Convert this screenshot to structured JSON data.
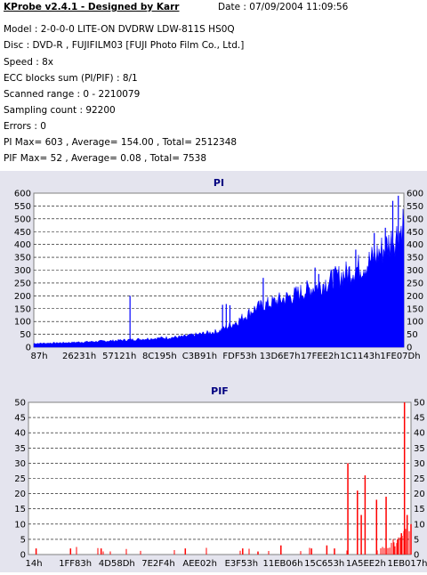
{
  "header": {
    "title": "KProbe v2.4.1 - Designed by Karr",
    "date": "Date : 07/09/2004 11:09:56",
    "lines": [
      "Model : 2-0-0-0 LITE-ON DVDRW LDW-811S   HS0Q",
      "Disc : DVD-R , FUJIFILM03 [FUJI Photo Film Co., Ltd.]",
      "Speed : 8x",
      "ECC blocks sum (PI/PIF) : 8/1",
      "Scanned range : 0 - 2210079",
      "Sampling count : 92200",
      "Errors : 0",
      "PI Max= 603 , Average= 154.00 , Total= 2512348",
      "PIF Max= 52 , Average= 0.08 , Total= 7538"
    ]
  },
  "chart_data": [
    {
      "type": "area",
      "title": "PI",
      "ylim": [
        0,
        600
      ],
      "yticks": [
        0,
        50,
        100,
        150,
        200,
        250,
        300,
        350,
        400,
        450,
        500,
        550,
        600
      ],
      "x_tick_labels": [
        "87h",
        "26231h",
        "57121h",
        "8C195h",
        "C3B91h",
        "FDF53h",
        "13D6E7h",
        "17FEE2h",
        "1C1143h",
        "1FE07Dh"
      ],
      "color": "#0000ff",
      "grid": true,
      "baseline_points": [
        [
          0,
          14
        ],
        [
          0.1,
          18
        ],
        [
          0.2,
          24
        ],
        [
          0.3,
          32
        ],
        [
          0.4,
          40
        ],
        [
          0.5,
          62
        ],
        [
          0.55,
          100
        ],
        [
          0.6,
          152
        ],
        [
          0.7,
          200
        ],
        [
          0.8,
          258
        ],
        [
          0.9,
          325
        ],
        [
          0.95,
          390
        ],
        [
          0.99,
          450
        ],
        [
          1,
          500
        ]
      ],
      "spikes": [
        [
          0.26,
          200
        ],
        [
          0.51,
          165
        ],
        [
          0.52,
          168
        ],
        [
          0.53,
          163
        ],
        [
          0.62,
          270
        ],
        [
          0.76,
          310
        ],
        [
          0.77,
          285
        ],
        [
          0.81,
          305
        ],
        [
          0.87,
          380
        ],
        [
          0.92,
          445
        ],
        [
          0.95,
          465
        ],
        [
          0.97,
          570
        ],
        [
          0.985,
          590
        ]
      ]
    },
    {
      "type": "bar",
      "title": "PIF",
      "ylim": [
        0,
        50
      ],
      "yticks": [
        0,
        5,
        10,
        15,
        20,
        25,
        30,
        35,
        40,
        45,
        50
      ],
      "x_tick_labels": [
        "14h",
        "1FF83h",
        "4D58Dh",
        "7E2F4h",
        "AEE02h",
        "E3F53h",
        "11EB06h",
        "15C653h",
        "1A5EE2h",
        "1EB017h"
      ],
      "color": "#ff0000",
      "grid": true,
      "spikes": [
        [
          0.02,
          2
        ],
        [
          0.11,
          2
        ],
        [
          0.19,
          2
        ],
        [
          0.41,
          2
        ],
        [
          0.56,
          2
        ],
        [
          0.6,
          1
        ],
        [
          0.66,
          3
        ],
        [
          0.74,
          2
        ],
        [
          0.78,
          3
        ],
        [
          0.8,
          2
        ],
        [
          0.835,
          30
        ],
        [
          0.86,
          21
        ],
        [
          0.88,
          26
        ],
        [
          0.87,
          13
        ],
        [
          0.91,
          18
        ],
        [
          0.935,
          19
        ],
        [
          0.955,
          4
        ],
        [
          0.965,
          5
        ],
        [
          0.975,
          7
        ],
        [
          0.983,
          51
        ],
        [
          0.99,
          13
        ],
        [
          1.0,
          10
        ]
      ]
    }
  ]
}
